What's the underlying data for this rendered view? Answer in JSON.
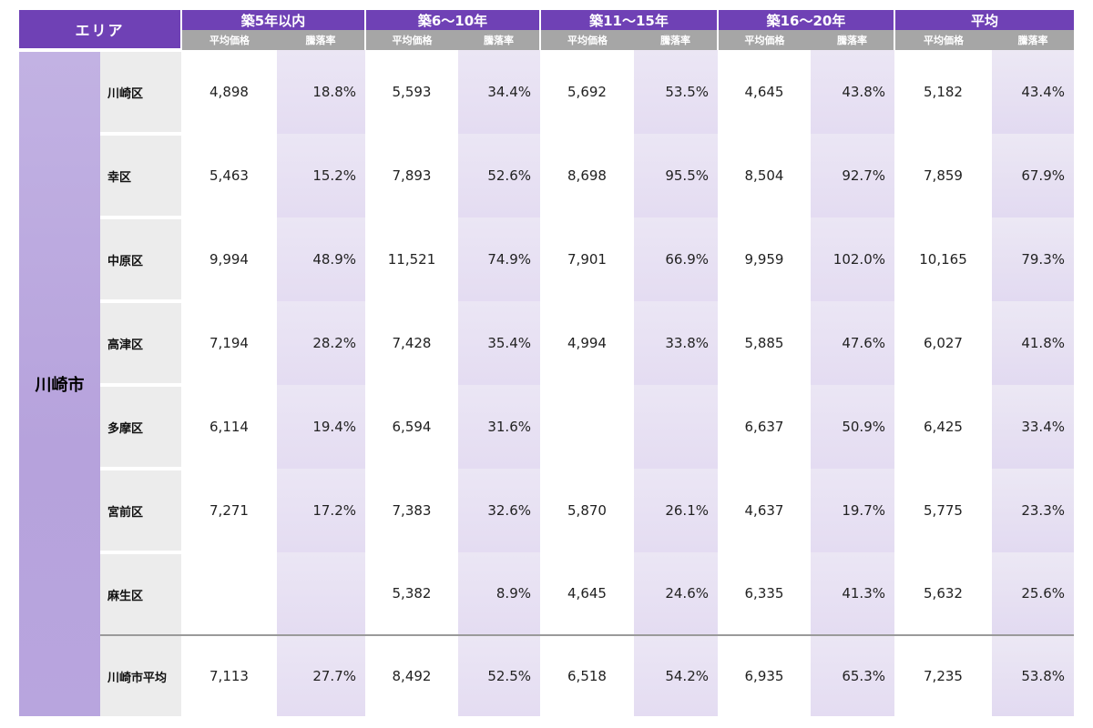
{
  "header": {
    "area_label": "エリア",
    "groups": [
      "築5年以内",
      "築6〜10年",
      "築11〜15年",
      "築16〜20年",
      "平均"
    ],
    "sub_price": "平均価格",
    "sub_rate": "騰落率"
  },
  "city": "川崎市",
  "rows": [
    {
      "ward": "川崎区",
      "cells": [
        "4,898",
        "18.8%",
        "5,593",
        "34.4%",
        "5,692",
        "53.5%",
        "4,645",
        "43.8%",
        "5,182",
        "43.4%"
      ]
    },
    {
      "ward": "幸区",
      "cells": [
        "5,463",
        "15.2%",
        "7,893",
        "52.6%",
        "8,698",
        "95.5%",
        "8,504",
        "92.7%",
        "7,859",
        "67.9%"
      ]
    },
    {
      "ward": "中原区",
      "cells": [
        "9,994",
        "48.9%",
        "11,521",
        "74.9%",
        "7,901",
        "66.9%",
        "9,959",
        "102.0%",
        "10,165",
        "79.3%"
      ]
    },
    {
      "ward": "高津区",
      "cells": [
        "7,194",
        "28.2%",
        "7,428",
        "35.4%",
        "4,994",
        "33.8%",
        "5,885",
        "47.6%",
        "6,027",
        "41.8%"
      ]
    },
    {
      "ward": "多摩区",
      "cells": [
        "6,114",
        "19.4%",
        "6,594",
        "31.6%",
        "",
        "",
        "6,637",
        "50.9%",
        "6,425",
        "33.4%"
      ]
    },
    {
      "ward": "宮前区",
      "cells": [
        "7,271",
        "17.2%",
        "7,383",
        "32.6%",
        "5,870",
        "26.1%",
        "4,637",
        "19.7%",
        "5,775",
        "23.3%"
      ]
    },
    {
      "ward": "麻生区",
      "cells": [
        "",
        "",
        "5,382",
        "8.9%",
        "4,645",
        "24.6%",
        "6,335",
        "41.3%",
        "5,632",
        "25.6%"
      ]
    }
  ],
  "average_row": {
    "ward": "川崎市平均",
    "cells": [
      "7,113",
      "27.7%",
      "8,492",
      "52.5%",
      "6,518",
      "54.2%",
      "6,935",
      "65.3%",
      "7,235",
      "53.8%"
    ]
  }
}
